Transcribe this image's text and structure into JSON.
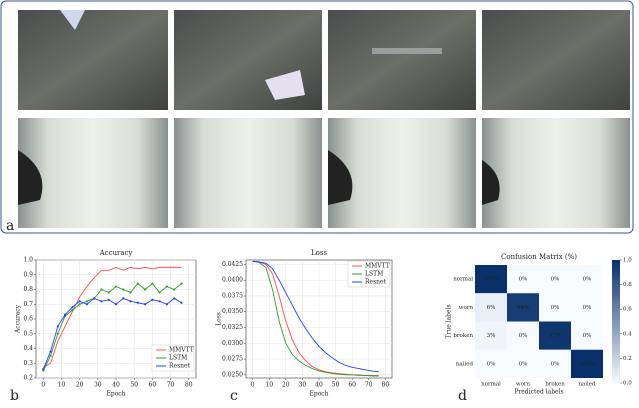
{
  "figure": {
    "panel_labels": [
      "a",
      "b",
      "c",
      "d"
    ]
  },
  "chart_data": [
    {
      "type": "line",
      "title": "Accuracy",
      "x_label": "Epoch",
      "y_label": "Accuracy",
      "x": [
        0,
        4,
        8,
        12,
        16,
        20,
        24,
        28,
        32,
        36,
        40,
        44,
        48,
        52,
        56,
        60,
        64,
        68,
        72,
        76
      ],
      "series": [
        {
          "name": "MMVTT",
          "color": "#ff4d4d",
          "values": [
            0.27,
            0.3,
            0.45,
            0.55,
            0.65,
            0.75,
            0.82,
            0.88,
            0.93,
            0.93,
            0.95,
            0.93,
            0.95,
            0.94,
            0.95,
            0.94,
            0.95,
            0.95,
            0.95,
            0.95
          ]
        },
        {
          "name": "LSTM",
          "color": "#2ca02c",
          "values": [
            0.25,
            0.35,
            0.5,
            0.62,
            0.66,
            0.7,
            0.72,
            0.74,
            0.8,
            0.78,
            0.82,
            0.8,
            0.78,
            0.84,
            0.8,
            0.84,
            0.78,
            0.82,
            0.8,
            0.84
          ]
        },
        {
          "name": "Resnet",
          "color": "#1f3fff",
          "values": [
            0.26,
            0.38,
            0.55,
            0.63,
            0.68,
            0.72,
            0.7,
            0.74,
            0.72,
            0.73,
            0.7,
            0.74,
            0.72,
            0.71,
            0.7,
            0.73,
            0.72,
            0.7,
            0.74,
            0.71
          ]
        }
      ],
      "xlim": [
        -4,
        84
      ],
      "xticks": [
        0,
        10,
        20,
        30,
        40,
        50,
        60,
        70,
        80
      ],
      "ylim": [
        0.2,
        1.0
      ],
      "yticks": [
        0.2,
        0.3,
        0.4,
        0.5,
        0.6,
        0.7,
        0.8,
        0.9,
        {
          "value": 1.0,
          "label": "1.0"
        }
      ],
      "grid": true,
      "legend": "lower-right"
    },
    {
      "type": "line",
      "title": "Loss",
      "x_label": "Epoch",
      "y_label": "Loss",
      "x": [
        0,
        4,
        8,
        12,
        16,
        20,
        24,
        28,
        32,
        36,
        40,
        44,
        48,
        52,
        56,
        60,
        64,
        68,
        72,
        76
      ],
      "series": [
        {
          "name": "MMVTT",
          "color": "#ff4d4d",
          "values": [
            0.043,
            0.0429,
            0.0425,
            0.041,
            0.0375,
            0.0335,
            0.0305,
            0.0285,
            0.0272,
            0.0263,
            0.0258,
            0.0255,
            0.0253,
            0.0252,
            0.0251,
            0.025,
            0.025,
            0.0249,
            0.0249,
            0.0249
          ]
        },
        {
          "name": "LSTM",
          "color": "#2ca02c",
          "values": [
            0.043,
            0.0428,
            0.042,
            0.0385,
            0.0335,
            0.03,
            0.0282,
            0.0272,
            0.0265,
            0.026,
            0.0256,
            0.0254,
            0.0252,
            0.0251,
            0.025,
            0.025,
            0.0249,
            0.0249,
            0.0248,
            0.0248
          ]
        },
        {
          "name": "Resnet",
          "color": "#1f3fff",
          "values": [
            0.043,
            0.0429,
            0.0427,
            0.0418,
            0.04,
            0.038,
            0.036,
            0.034,
            0.0323,
            0.0308,
            0.0295,
            0.0285,
            0.0277,
            0.027,
            0.0265,
            0.0262,
            0.026,
            0.0258,
            0.0256,
            0.0255
          ]
        }
      ],
      "xlim": [
        -4,
        84
      ],
      "xticks": [
        0,
        10,
        20,
        30,
        40,
        50,
        60,
        70,
        80
      ],
      "ylim": [
        0.0245,
        0.0432
      ],
      "yticks": [
        {
          "value": 0.025,
          "label": "0.0250"
        },
        {
          "value": 0.0275,
          "label": "0.0275"
        },
        {
          "value": 0.03,
          "label": "0.0300"
        },
        {
          "value": 0.0325,
          "label": "0.0325"
        },
        {
          "value": 0.035,
          "label": "0.0350"
        },
        {
          "value": 0.0375,
          "label": "0.0375"
        },
        {
          "value": 0.04,
          "label": "0.0400"
        },
        {
          "value": 0.0425,
          "label": "0.0425"
        }
      ],
      "grid": true,
      "legend": "upper-right"
    },
    {
      "type": "heatmap",
      "title": "Confusion Matrix (%)",
      "x_label": "Predicted labels",
      "y_label": "True labels",
      "categories": [
        "normal",
        "worn",
        "broken",
        "nailed"
      ],
      "values": [
        [
          1.0,
          0,
          0,
          0
        ],
        [
          0.06,
          0.94,
          0,
          0
        ],
        [
          0.03,
          0,
          0.97,
          0
        ],
        [
          0,
          0,
          0,
          1.0
        ]
      ],
      "value_labels": [
        [
          "100%",
          "0%",
          "0%",
          "0%"
        ],
        [
          "6%",
          "94%",
          "0%",
          "0%"
        ],
        [
          "3%",
          "0%",
          "97%",
          "0%"
        ],
        [
          "0%",
          "0%",
          "0%",
          "100%"
        ]
      ],
      "colorbar_lim": [
        0,
        1
      ],
      "colorbar_ticks": [
        {
          "value": 0,
          "label": "0.0"
        },
        0.2,
        0.4,
        0.6,
        0.8,
        {
          "value": 1,
          "label": "1.0"
        }
      ],
      "colormap": [
        "#f7fbff",
        "#08306b"
      ]
    }
  ]
}
